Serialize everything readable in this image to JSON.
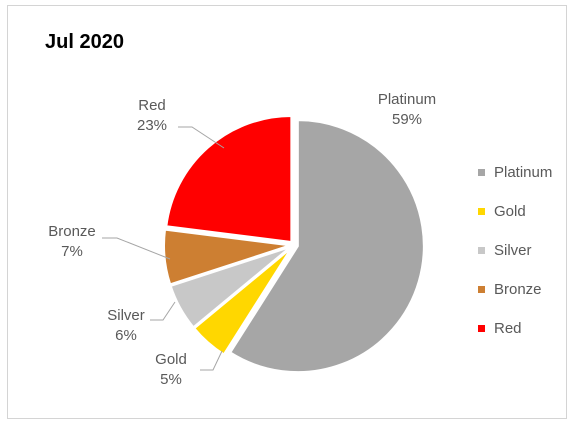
{
  "chart_data": {
    "type": "pie",
    "title": "Jul 2020",
    "slices": [
      {
        "name": "Platinum",
        "value": 59,
        "label": "59%",
        "color": "#a6a6a6"
      },
      {
        "name": "Gold",
        "value": 5,
        "label": "5%",
        "color": "#ffd700"
      },
      {
        "name": "Silver",
        "value": 6,
        "label": "6%",
        "color": "#c8c8c8"
      },
      {
        "name": "Bronze",
        "value": 7,
        "label": "7%",
        "color": "#cd7f32"
      },
      {
        "name": "Red",
        "value": 23,
        "label": "23%",
        "color": "#ff0000"
      }
    ],
    "start_angle_deg": 0,
    "direction": "clockwise",
    "exploded": true,
    "legend_position": "right"
  }
}
